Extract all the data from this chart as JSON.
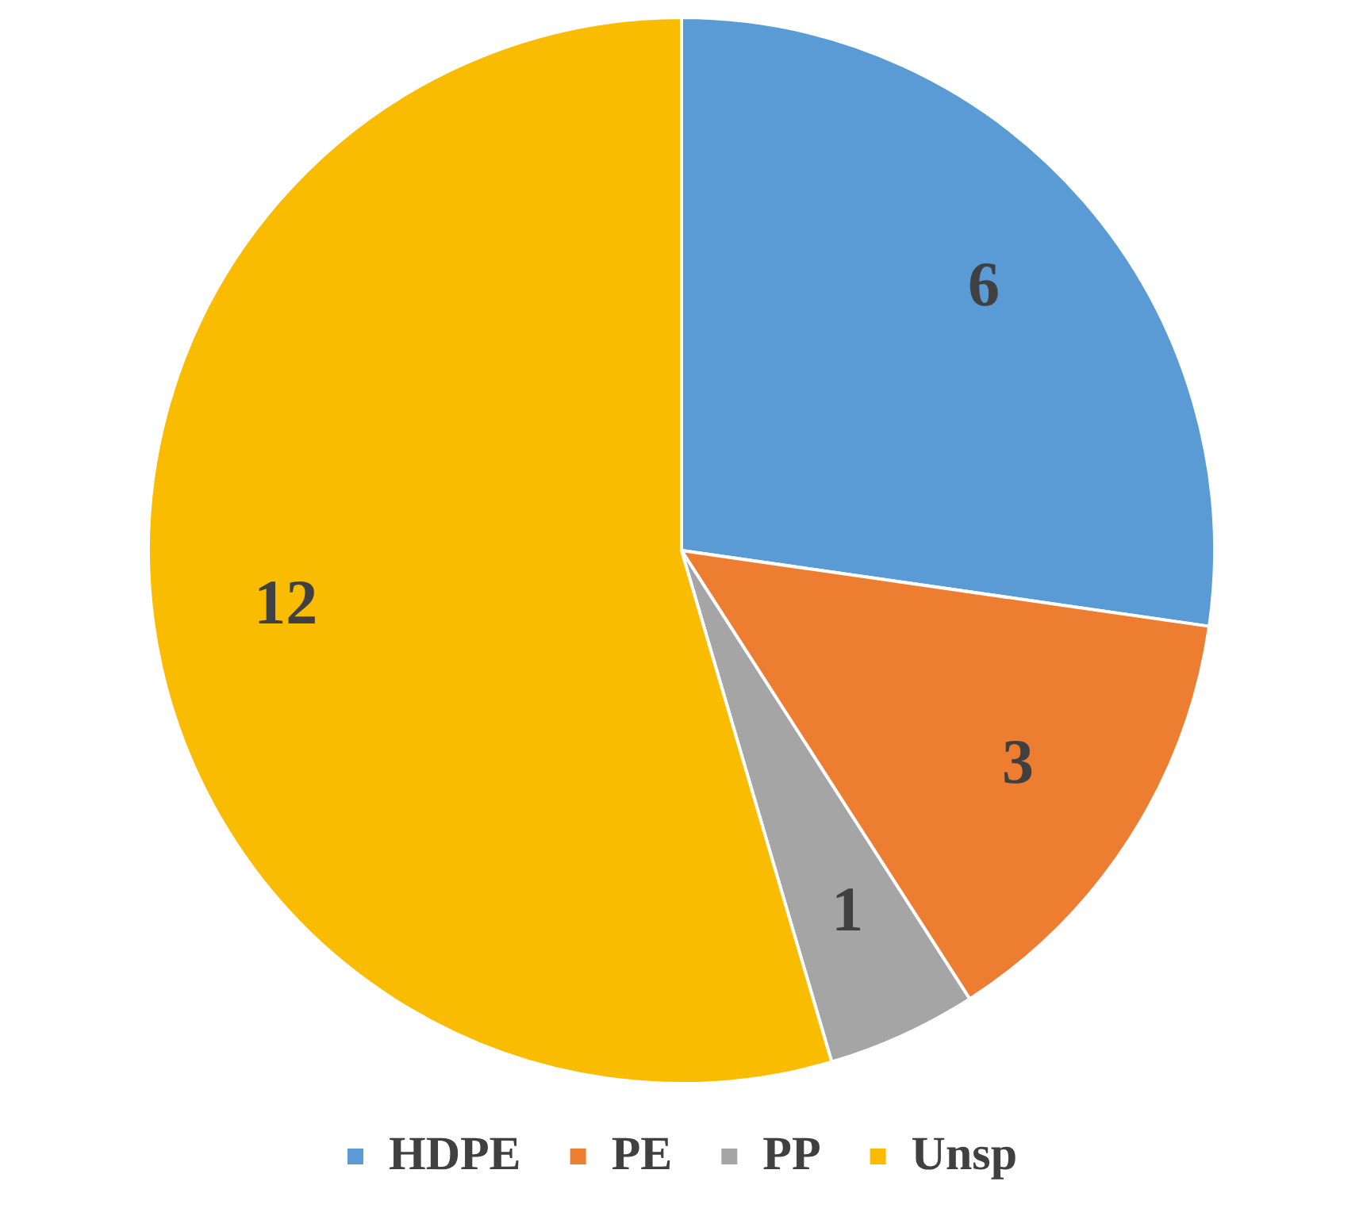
{
  "chart_data": {
    "type": "pie",
    "categories": [
      "HDPE",
      "PE",
      "PP",
      "Unsp"
    ],
    "values": [
      6,
      3,
      1,
      12
    ],
    "colors": [
      "#5b9bd5",
      "#ed7d31",
      "#a5a5a5",
      "#f9bc00"
    ],
    "data_labels": true,
    "legend": "bottom"
  }
}
